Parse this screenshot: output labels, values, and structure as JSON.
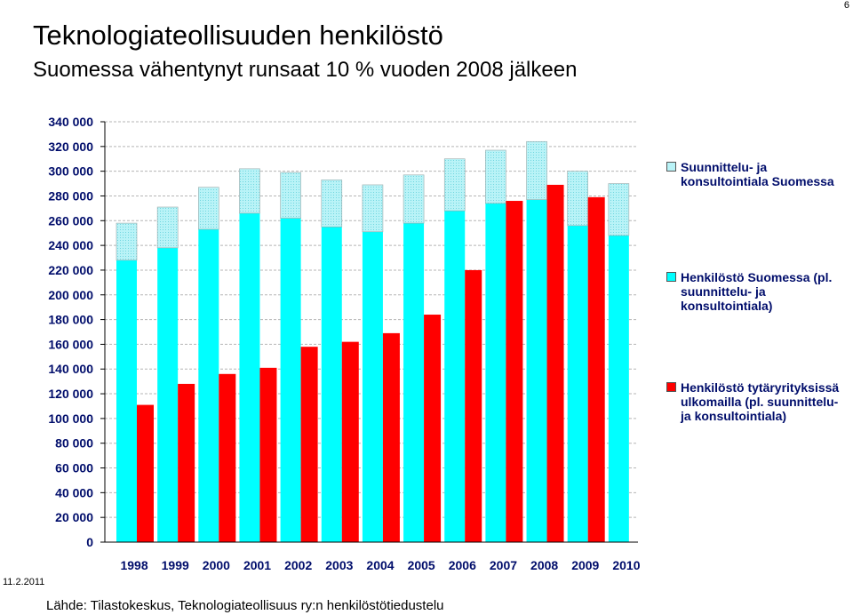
{
  "page_number": "6",
  "title": "Teknologiateollisuuden henkilöstö",
  "subtitle": "Suomessa vähentynyt runsaat 10 % vuoden 2008 jälkeen",
  "date": "11.2.2011",
  "source": "Lähde: Tilastokeskus, Teknologiateollisuus ry:n henkilöstötiedustelu",
  "colors": {
    "consulting": "#b9f3f7",
    "finland": "#00ffff",
    "abroad": "#ff0000",
    "axis_text": "#000d6b"
  },
  "chart_data": {
    "type": "bar",
    "stacked_series": [
      "finland_excl",
      "consulting"
    ],
    "categories": [
      "1998",
      "1999",
      "2000",
      "2001",
      "2002",
      "2003",
      "2004",
      "2005",
      "2006",
      "2007",
      "2008",
      "2009",
      "2010"
    ],
    "series": [
      {
        "key": "finland_excl",
        "name": "Henkilöstö Suomessa (pl. suunnittelu- ja konsultointiala)",
        "values": [
          228000,
          238000,
          253000,
          266000,
          262000,
          255000,
          251000,
          258000,
          268000,
          274000,
          277000,
          256000,
          248000
        ]
      },
      {
        "key": "consulting",
        "name": "Suunnittelu- ja konsultointiala Suomessa",
        "values": [
          30000,
          33000,
          34000,
          36000,
          37000,
          38000,
          38000,
          39000,
          42000,
          43000,
          47000,
          44000,
          42000
        ]
      },
      {
        "key": "abroad",
        "name": "Henkilöstö tytäryrityksissä ulkomailla (pl. suunnittelu- ja konsultointiala)",
        "values": [
          111000,
          128000,
          136000,
          141000,
          158000,
          162000,
          169000,
          184000,
          220000,
          276000,
          289000,
          279000,
          null
        ]
      }
    ],
    "ylim": [
      0,
      340000
    ],
    "yticks": [
      "0",
      "20 000",
      "40 000",
      "60 000",
      "80 000",
      "100 000",
      "120 000",
      "140 000",
      "160 000",
      "180 000",
      "200 000",
      "220 000",
      "240 000",
      "260 000",
      "280 000",
      "300 000",
      "320 000",
      "340 000"
    ],
    "grid": true,
    "legend_position": "right"
  }
}
